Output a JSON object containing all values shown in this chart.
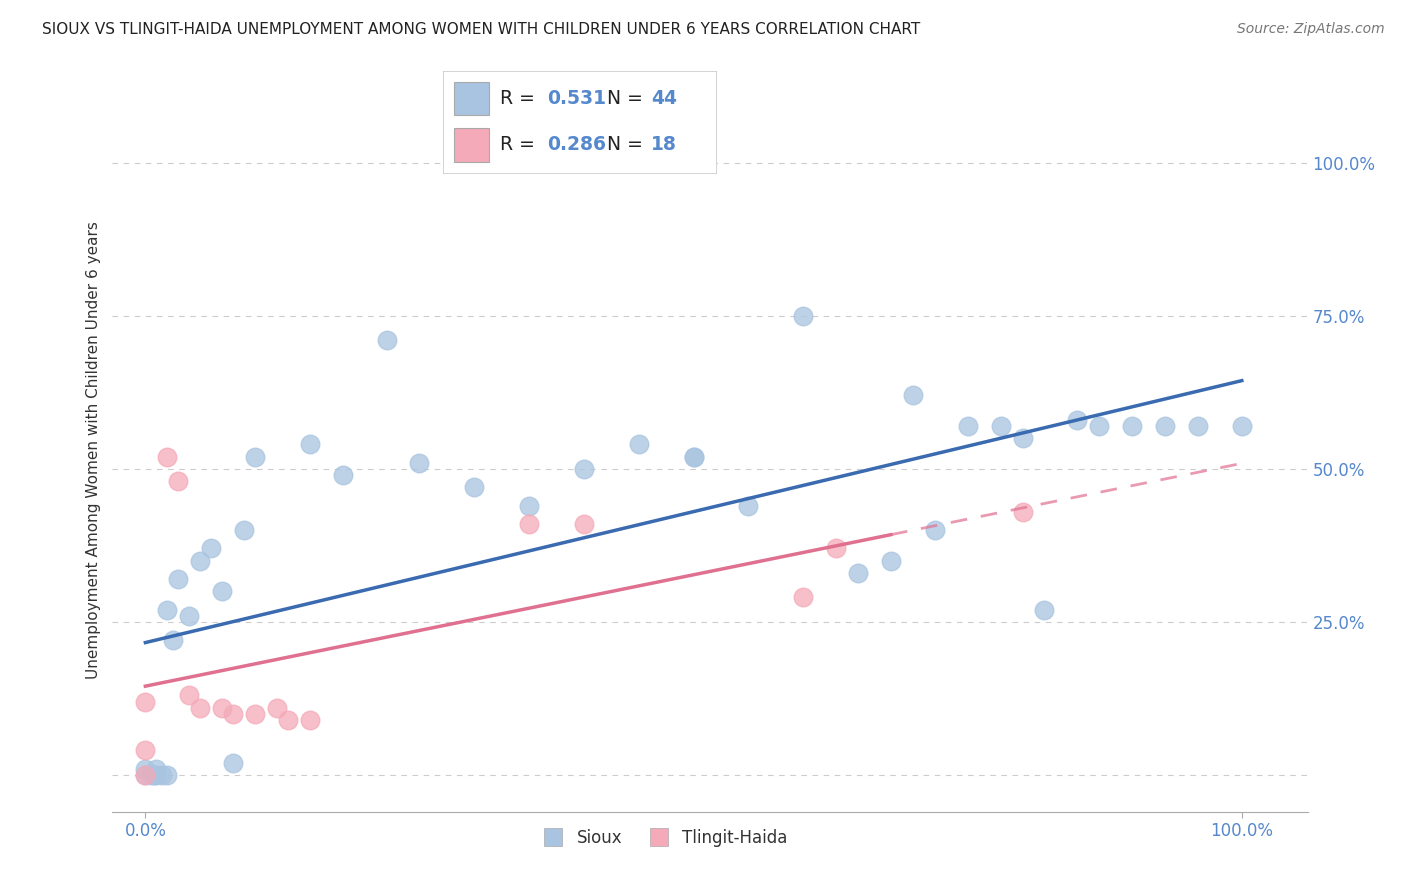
{
  "title": "SIOUX VS TLINGIT-HAIDA UNEMPLOYMENT AMONG WOMEN WITH CHILDREN UNDER 6 YEARS CORRELATION CHART",
  "source": "Source: ZipAtlas.com",
  "ylabel": "Unemployment Among Women with Children Under 6 years",
  "sioux_R": 0.531,
  "sioux_N": 44,
  "tlingit_R": 0.286,
  "tlingit_N": 18,
  "sioux_color": "#a8c4e0",
  "tlingit_color": "#f4aab8",
  "sioux_line_color": "#3a6ab0",
  "tlingit_line_color": "#e07090",
  "ytick_color": "#5588cc",
  "sioux_scatter": [
    [
      0.0,
      0.0
    ],
    [
      0.0,
      0.01
    ],
    [
      0.005,
      0.0
    ],
    [
      0.008,
      0.0
    ],
    [
      0.01,
      0.0
    ],
    [
      0.01,
      0.01
    ],
    [
      0.015,
      0.0
    ],
    [
      0.02,
      0.0
    ],
    [
      0.02,
      0.27
    ],
    [
      0.025,
      0.22
    ],
    [
      0.03,
      0.32
    ],
    [
      0.04,
      0.26
    ],
    [
      0.05,
      0.35
    ],
    [
      0.06,
      0.37
    ],
    [
      0.07,
      0.3
    ],
    [
      0.08,
      0.02
    ],
    [
      0.09,
      0.4
    ],
    [
      0.1,
      0.52
    ],
    [
      0.15,
      0.54
    ],
    [
      0.18,
      0.49
    ],
    [
      0.22,
      0.71
    ],
    [
      0.25,
      0.51
    ],
    [
      0.3,
      0.47
    ],
    [
      0.35,
      0.44
    ],
    [
      0.4,
      0.5
    ],
    [
      0.45,
      0.54
    ],
    [
      0.5,
      0.52
    ],
    [
      0.55,
      0.44
    ],
    [
      0.6,
      0.75
    ],
    [
      0.65,
      0.33
    ],
    [
      0.68,
      0.35
    ],
    [
      0.7,
      0.62
    ],
    [
      0.72,
      0.4
    ],
    [
      0.75,
      0.57
    ],
    [
      0.78,
      0.57
    ],
    [
      0.8,
      0.55
    ],
    [
      0.82,
      0.27
    ],
    [
      0.85,
      0.58
    ],
    [
      0.87,
      0.57
    ],
    [
      0.9,
      0.57
    ],
    [
      0.93,
      0.57
    ],
    [
      0.96,
      0.57
    ],
    [
      0.5,
      0.52
    ],
    [
      1.0,
      0.57
    ]
  ],
  "tlingit_scatter": [
    [
      0.0,
      0.12
    ],
    [
      0.0,
      0.0
    ],
    [
      0.0,
      0.04
    ],
    [
      0.02,
      0.52
    ],
    [
      0.03,
      0.48
    ],
    [
      0.04,
      0.13
    ],
    [
      0.05,
      0.11
    ],
    [
      0.07,
      0.11
    ],
    [
      0.08,
      0.1
    ],
    [
      0.1,
      0.1
    ],
    [
      0.12,
      0.11
    ],
    [
      0.13,
      0.09
    ],
    [
      0.15,
      0.09
    ],
    [
      0.35,
      0.41
    ],
    [
      0.4,
      0.41
    ],
    [
      0.6,
      0.29
    ],
    [
      0.63,
      0.37
    ],
    [
      0.8,
      0.43
    ]
  ],
  "yticks": [
    0.0,
    0.25,
    0.5,
    0.75,
    1.0
  ],
  "ytick_labels": [
    "",
    "25.0%",
    "50.0%",
    "75.0%",
    "100.0%"
  ],
  "xtick_labels": [
    "0.0%",
    "100.0%"
  ],
  "xlim": [
    -0.03,
    1.06
  ],
  "ylim": [
    -0.06,
    1.12
  ],
  "background_color": "#ffffff",
  "grid_color": "#cccccc",
  "title_fontsize": 11,
  "source_fontsize": 10,
  "label_fontsize": 11,
  "tick_fontsize": 12
}
